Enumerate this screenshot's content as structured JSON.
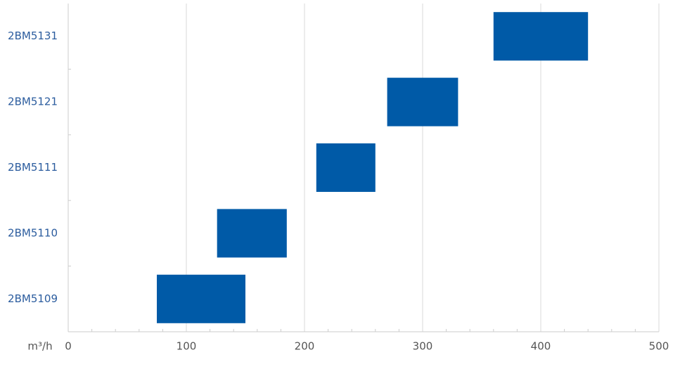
{
  "chart_data": {
    "type": "floating-bar",
    "categories": [
      "2BM5109",
      "2BM5110",
      "2BM5111",
      "2BM5121",
      "2BM5131"
    ],
    "low": [
      75,
      126,
      210,
      270,
      360
    ],
    "high": [
      150,
      185,
      260,
      330,
      440
    ],
    "color": "#005aa7",
    "x_label": "m³/h",
    "xlim": [
      0,
      500
    ],
    "xticks": [
      0,
      100,
      200,
      300,
      400,
      500
    ],
    "xminorticks": [
      20,
      40,
      60,
      80,
      120,
      140,
      160,
      180,
      220,
      240,
      260,
      280,
      320,
      340,
      360,
      380,
      420,
      440,
      460,
      480
    ],
    "grid": true
  }
}
